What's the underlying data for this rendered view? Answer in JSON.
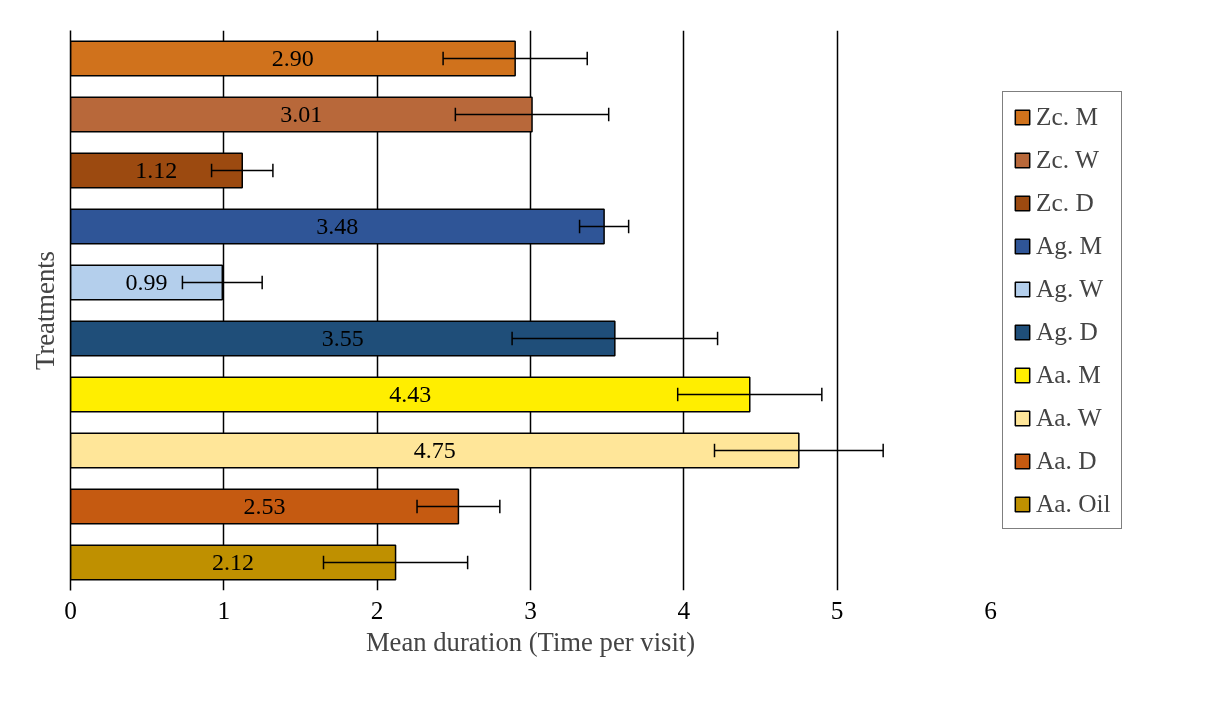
{
  "chart_data": {
    "type": "bar",
    "orientation": "horizontal",
    "xlabel": "Mean duration (Time per visit)",
    "ylabel": "Treatments",
    "categories": [
      null,
      null,
      null,
      null,
      null,
      null,
      null,
      null,
      null,
      null
    ],
    "series": [
      {
        "name": "Zc. M",
        "color": "#d0721c",
        "values": [
          2.9,
          null,
          null,
          null,
          null,
          null,
          null,
          null,
          null,
          null
        ],
        "value_labels": [
          "2.90",
          null,
          null,
          null,
          null,
          null,
          null,
          null,
          null,
          null
        ],
        "errors": [
          0.47,
          null,
          null,
          null,
          null,
          null,
          null,
          null,
          null,
          null
        ]
      },
      {
        "name": "Zc. W",
        "color": "#b8683a",
        "values": [
          null,
          3.01,
          null,
          null,
          null,
          null,
          null,
          null,
          null,
          null
        ],
        "value_labels": [
          null,
          "3.01",
          null,
          null,
          null,
          null,
          null,
          null,
          null,
          null
        ],
        "errors": [
          null,
          0.5,
          null,
          null,
          null,
          null,
          null,
          null,
          null,
          null
        ]
      },
      {
        "name": "Zc. D",
        "color": "#9c4a10",
        "values": [
          null,
          null,
          1.12,
          null,
          null,
          null,
          null,
          null,
          null,
          null
        ],
        "value_labels": [
          null,
          null,
          "1.12",
          null,
          null,
          null,
          null,
          null,
          null,
          null
        ],
        "errors": [
          null,
          null,
          0.2,
          null,
          null,
          null,
          null,
          null,
          null,
          null
        ]
      },
      {
        "name": "Ag. M",
        "color": "#2f5597",
        "values": [
          null,
          null,
          null,
          3.48,
          null,
          null,
          null,
          null,
          null,
          null
        ],
        "value_labels": [
          null,
          null,
          null,
          "3.48",
          null,
          null,
          null,
          null,
          null,
          null
        ],
        "errors": [
          null,
          null,
          null,
          0.16,
          null,
          null,
          null,
          null,
          null,
          null
        ]
      },
      {
        "name": "Ag. W",
        "color": "#b4cfec",
        "values": [
          null,
          null,
          null,
          null,
          0.99,
          null,
          null,
          null,
          null,
          null
        ],
        "value_labels": [
          null,
          null,
          null,
          null,
          "0.99",
          null,
          null,
          null,
          null,
          null
        ],
        "errors": [
          null,
          null,
          null,
          null,
          0.26,
          null,
          null,
          null,
          null,
          null
        ]
      },
      {
        "name": "Ag. D",
        "color": "#1f4e79",
        "values": [
          null,
          null,
          null,
          null,
          null,
          3.55,
          null,
          null,
          null,
          null
        ],
        "value_labels": [
          null,
          null,
          null,
          null,
          null,
          "3.55",
          null,
          null,
          null,
          null
        ],
        "errors": [
          null,
          null,
          null,
          null,
          null,
          0.67,
          null,
          null,
          null,
          null
        ]
      },
      {
        "name": "Aa. M",
        "color": "#ffee00",
        "values": [
          null,
          null,
          null,
          null,
          null,
          null,
          4.43,
          null,
          null,
          null
        ],
        "value_labels": [
          null,
          null,
          null,
          null,
          null,
          null,
          "4.43",
          null,
          null,
          null
        ],
        "errors": [
          null,
          null,
          null,
          null,
          null,
          null,
          0.47,
          null,
          null,
          null
        ]
      },
      {
        "name": "Aa. W",
        "color": "#ffe699",
        "values": [
          null,
          null,
          null,
          null,
          null,
          null,
          null,
          4.75,
          null,
          null
        ],
        "value_labels": [
          null,
          null,
          null,
          null,
          null,
          null,
          null,
          "4.75",
          null,
          null
        ],
        "errors": [
          null,
          null,
          null,
          null,
          null,
          null,
          null,
          0.55,
          null,
          null
        ]
      },
      {
        "name": "Aa. D",
        "color": "#c55a11",
        "values": [
          null,
          null,
          null,
          null,
          null,
          null,
          null,
          null,
          2.53,
          null
        ],
        "value_labels": [
          null,
          null,
          null,
          null,
          null,
          null,
          null,
          null,
          "2.53",
          null
        ],
        "errors": [
          null,
          null,
          null,
          null,
          null,
          null,
          null,
          null,
          0.27,
          null
        ]
      },
      {
        "name": "Aa. Oil",
        "color": "#bf9000",
        "values": [
          null,
          null,
          null,
          null,
          null,
          null,
          null,
          null,
          null,
          2.12
        ],
        "value_labels": [
          null,
          null,
          null,
          null,
          null,
          null,
          null,
          null,
          null,
          "2.12"
        ],
        "errors": [
          null,
          null,
          null,
          null,
          null,
          null,
          null,
          null,
          null,
          0.47
        ]
      }
    ],
    "xlim": [
      0,
      6
    ],
    "xticks": [
      0,
      1,
      2,
      3,
      4,
      5,
      6
    ],
    "grid": "x",
    "legend": "right"
  }
}
